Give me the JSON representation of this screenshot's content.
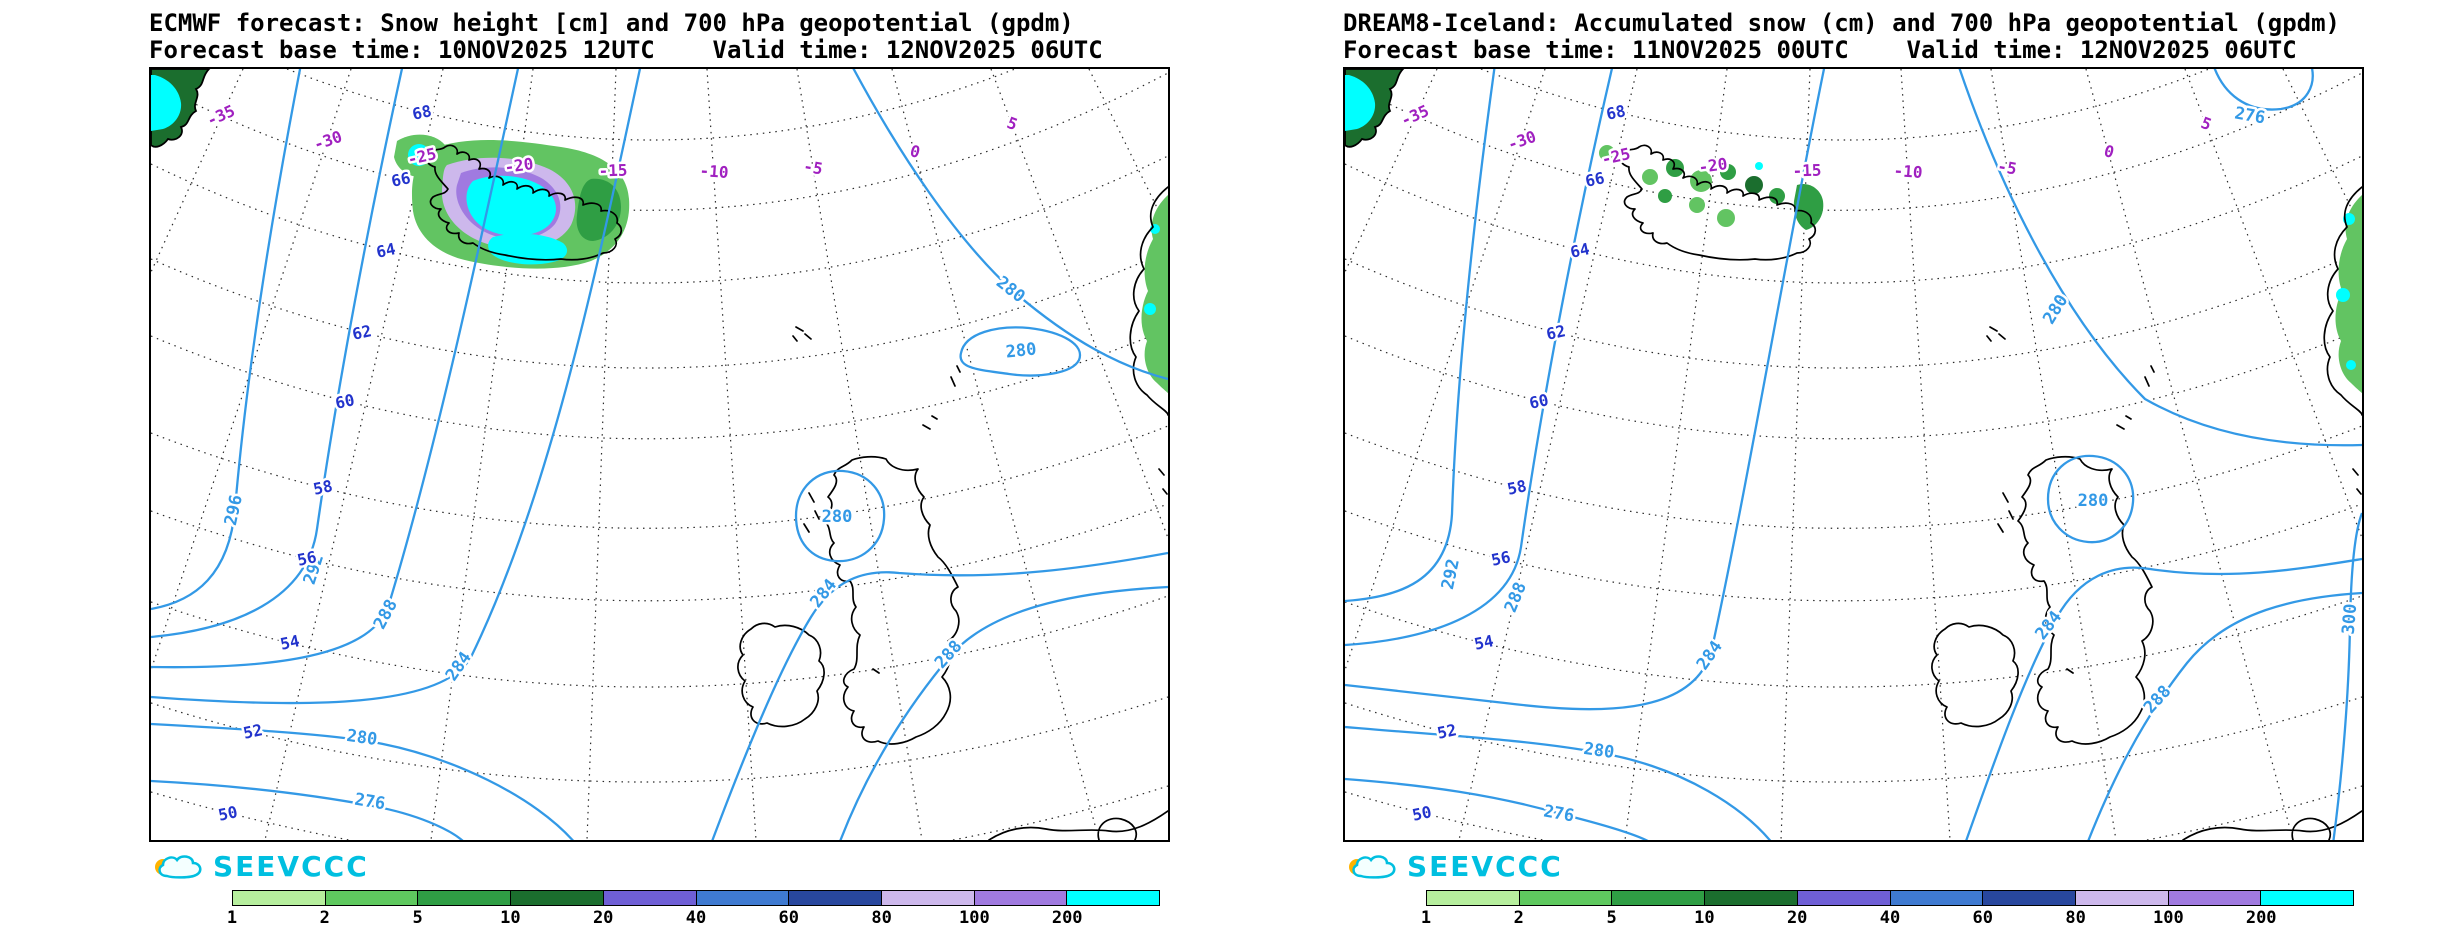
{
  "panels": [
    {
      "title": "ECMWF forecast: Snow height [cm] and 700 hPa geopotential (gpdm)",
      "subtitle": "Forecast base time: 10NOV2025 12UTC    Valid time: 12NOV2025 06UTC",
      "contours": {
        "g296": "296",
        "g292w": "292",
        "g288w": "288",
        "g284w": "284",
        "g280sw": "280",
        "g276sw": "276",
        "g280scot": "280",
        "g284e": "284",
        "g288e": "288",
        "g280ne": "280",
        "g280loop": "280"
      }
    },
    {
      "title": "DREAM8-Iceland: Accumulated snow (cm) and 700 hPa geopotential (gpdm)",
      "subtitle": "Forecast base time: 11NOV2025 00UTC    Valid time: 12NOV2025 06UTC",
      "contours": {
        "g292": "292",
        "g288w": "288",
        "g284w": "284",
        "g280sw": "280",
        "g276sw": "276",
        "g280scot": "280",
        "g280top": "280",
        "g284e": "284",
        "g288e": "288",
        "g276ne": "276",
        "g300": "300"
      }
    }
  ],
  "axis": {
    "lats": [
      "68",
      "66",
      "64",
      "62",
      "60",
      "58",
      "56",
      "54",
      "52",
      "50"
    ],
    "lons": [
      "-35",
      "-30",
      "-25",
      "-20",
      "-15",
      "-10",
      "-5",
      "0",
      "5"
    ]
  },
  "logo": {
    "text": "SEEVCCC"
  },
  "legend": {
    "ticks": [
      "1",
      "2",
      "5",
      "10",
      "20",
      "40",
      "60",
      "80",
      "100",
      "200"
    ],
    "colors": [
      "#b7ef9e",
      "#5fc95f",
      "#2f9e44",
      "#1b6e2e",
      "#6f5fd6",
      "#3f7ad1",
      "#28479e",
      "#cdb8ec",
      "#a07ae0",
      "#00ffff"
    ]
  },
  "colors": {
    "contour_line": "#3399e6",
    "latitude_labels": "#2233cc",
    "longitude_labels": "#a020c0",
    "coastline": "#000000",
    "logo": "#00bfe0",
    "logo_sun": "#ffb300",
    "snow_max": "#00ffff"
  }
}
